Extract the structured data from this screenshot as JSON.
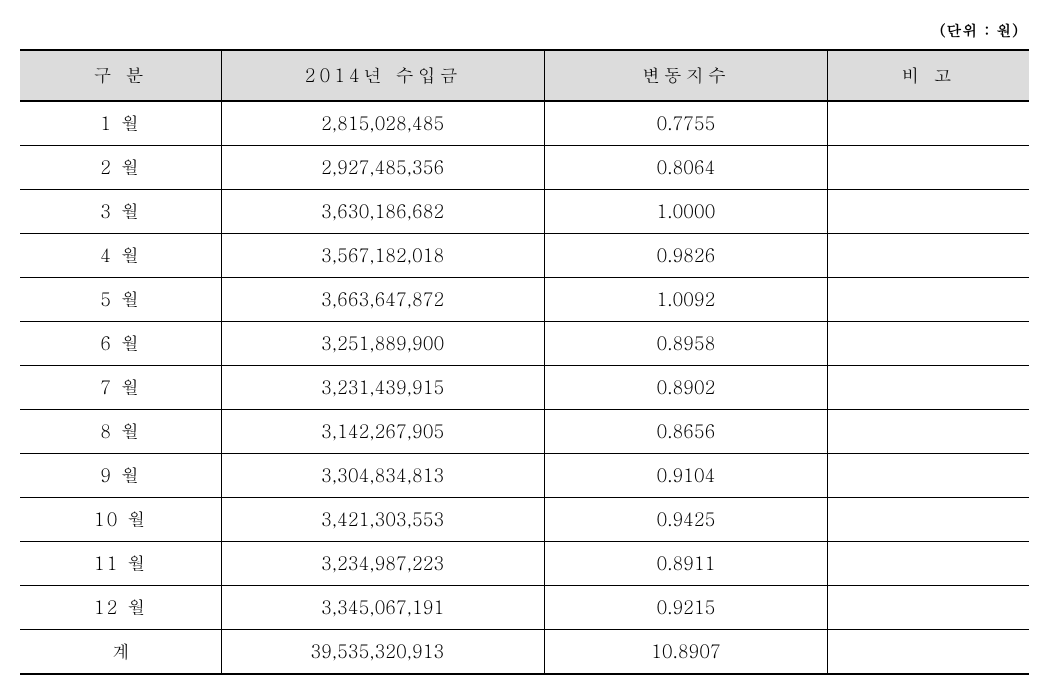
{
  "unit_label": "(단위 : 원)",
  "headers": {
    "category": "구 분",
    "income": "2014년 수입금",
    "index": "변동지수",
    "note": "비 고"
  },
  "rows": [
    {
      "month": "1 월",
      "income": "2,815,028,485",
      "index": "0.7755",
      "note": ""
    },
    {
      "month": "2 월",
      "income": "2,927,485,356",
      "index": "0.8064",
      "note": ""
    },
    {
      "month": "3 월",
      "income": "3,630,186,682",
      "index": "1.0000",
      "note": ""
    },
    {
      "month": "4 월",
      "income": "3,567,182,018",
      "index": "0.9826",
      "note": ""
    },
    {
      "month": "5 월",
      "income": "3,663,647,872",
      "index": "1.0092",
      "note": ""
    },
    {
      "month": "6 월",
      "income": "3,251,889,900",
      "index": "0.8958",
      "note": ""
    },
    {
      "month": "7 월",
      "income": "3,231,439,915",
      "index": "0.8902",
      "note": ""
    },
    {
      "month": "8 월",
      "income": "3,142,267,905",
      "index": "0.8656",
      "note": ""
    },
    {
      "month": "9 월",
      "income": "3,304,834,813",
      "index": "0.9104",
      "note": ""
    },
    {
      "month": "10 월",
      "income": "3,421,303,553",
      "index": "0.9425",
      "note": ""
    },
    {
      "month": "11 월",
      "income": "3,234,987,223",
      "index": "0.8911",
      "note": ""
    },
    {
      "month": "12 월",
      "income": "3,345,067,191",
      "index": "0.9215",
      "note": ""
    }
  ],
  "total": {
    "label": "계",
    "income": "39,535,320,913",
    "index": "10.8907",
    "note": ""
  },
  "styling": {
    "header_bg": "#dcdcdc",
    "border_color": "#000000",
    "header_fontsize": 18,
    "cell_fontsize": 18,
    "unit_fontsize": 15,
    "col_widths": {
      "category": 200,
      "income": 320,
      "index": 280,
      "note": 200
    }
  }
}
